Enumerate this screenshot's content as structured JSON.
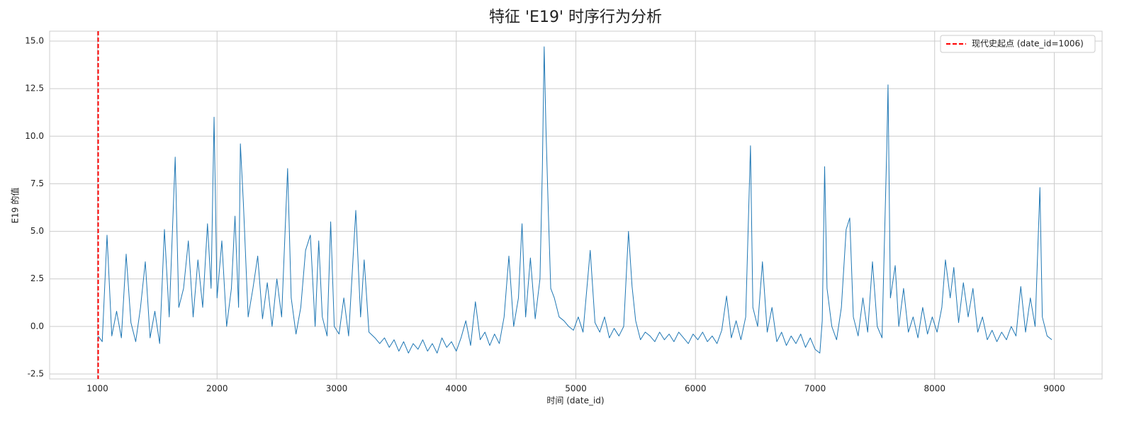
{
  "chart_data": {
    "type": "line",
    "title": "特征 'E19' 时序行为分析",
    "xlabel": "时间 (date_id)",
    "ylabel": "E19 的值",
    "xlim": [
      600,
      9400
    ],
    "ylim": [
      -2.76,
      15.52
    ],
    "xticks": [
      1000,
      2000,
      3000,
      4000,
      5000,
      6000,
      7000,
      8000,
      9000
    ],
    "yticks": [
      {
        "value": -2.5,
        "label": "-2.5"
      },
      {
        "value": 0,
        "label": "0.0"
      },
      2.5,
      {
        "value": 5,
        "label": "5.0"
      },
      7.5,
      {
        "value": 10,
        "label": "10.0"
      },
      12.5,
      {
        "value": 15,
        "label": "15.0"
      }
    ],
    "grid": true,
    "legend": "upper right",
    "vline": {
      "x": 1006,
      "color": "#ff0000",
      "label": "现代史起点 (date_id=1006)"
    },
    "x": [
      1006,
      1040,
      1080,
      1120,
      1160,
      1200,
      1240,
      1280,
      1320,
      1360,
      1400,
      1440,
      1480,
      1520,
      1560,
      1600,
      1650,
      1680,
      1720,
      1760,
      1800,
      1840,
      1880,
      1920,
      1950,
      1975,
      2000,
      2040,
      2080,
      2120,
      2150,
      2180,
      2195,
      2220,
      2260,
      2300,
      2340,
      2380,
      2420,
      2460,
      2500,
      2540,
      2590,
      2620,
      2660,
      2700,
      2740,
      2780,
      2820,
      2850,
      2880,
      2920,
      2950,
      2980,
      3020,
      3060,
      3100,
      3160,
      3200,
      3230,
      3270,
      3320,
      3360,
      3400,
      3440,
      3480,
      3520,
      3560,
      3600,
      3640,
      3680,
      3720,
      3760,
      3800,
      3840,
      3880,
      3920,
      3960,
      4000,
      4040,
      4080,
      4120,
      4160,
      4200,
      4240,
      4280,
      4320,
      4360,
      4400,
      4440,
      4480,
      4520,
      4550,
      4580,
      4620,
      4660,
      4700,
      4720,
      4735,
      4750,
      4770,
      4790,
      4820,
      4860,
      4900,
      4940,
      4980,
      5020,
      5060,
      5120,
      5160,
      5200,
      5240,
      5280,
      5320,
      5360,
      5400,
      5440,
      5470,
      5500,
      5540,
      5580,
      5620,
      5660,
      5700,
      5740,
      5780,
      5820,
      5860,
      5900,
      5940,
      5980,
      6020,
      6060,
      6100,
      6140,
      6180,
      6220,
      6260,
      6300,
      6340,
      6380,
      6420,
      6460,
      6480,
      6520,
      6560,
      6600,
      6640,
      6680,
      6720,
      6760,
      6800,
      6840,
      6880,
      6920,
      6960,
      7000,
      7040,
      7060,
      7080,
      7100,
      7140,
      7180,
      7220,
      7260,
      7290,
      7320,
      7360,
      7400,
      7440,
      7480,
      7520,
      7560,
      7600,
      7610,
      7630,
      7670,
      7700,
      7740,
      7780,
      7820,
      7860,
      7900,
      7940,
      7980,
      8020,
      8060,
      8090,
      8130,
      8160,
      8200,
      8240,
      8280,
      8320,
      8360,
      8400,
      8440,
      8480,
      8520,
      8560,
      8600,
      8640,
      8680,
      8720,
      8760,
      8800,
      8840,
      8880,
      8900,
      8940,
      8980
    ],
    "series": [
      {
        "name": "E19",
        "color": "#1f77b4",
        "values": [
          -0.5,
          -0.8,
          4.8,
          -0.5,
          0.8,
          -0.6,
          3.8,
          0.2,
          -0.8,
          1.0,
          3.4,
          -0.6,
          0.8,
          -0.9,
          5.1,
          0.5,
          8.9,
          1.0,
          2.0,
          4.5,
          0.5,
          3.5,
          1.0,
          5.4,
          2.0,
          11.0,
          1.5,
          4.5,
          0.0,
          2.0,
          5.8,
          1.0,
          9.6,
          6.5,
          0.5,
          2.0,
          3.7,
          0.4,
          2.3,
          0.0,
          2.5,
          0.5,
          8.3,
          1.5,
          -0.4,
          1.0,
          4.0,
          4.8,
          0.0,
          4.5,
          0.5,
          -0.5,
          5.5,
          0.0,
          -0.4,
          1.5,
          -0.5,
          6.1,
          0.5,
          3.5,
          -0.3,
          -0.6,
          -0.9,
          -0.6,
          -1.1,
          -0.7,
          -1.3,
          -0.8,
          -1.4,
          -0.9,
          -1.2,
          -0.7,
          -1.3,
          -0.9,
          -1.4,
          -0.6,
          -1.1,
          -0.8,
          -1.3,
          -0.6,
          0.3,
          -1.0,
          1.3,
          -0.7,
          -0.3,
          -1.0,
          -0.4,
          -0.9,
          0.5,
          3.7,
          0.0,
          1.5,
          5.4,
          0.5,
          3.6,
          0.4,
          2.5,
          8.3,
          14.7,
          10.4,
          6.0,
          2.0,
          1.5,
          0.5,
          0.3,
          0.0,
          -0.2,
          0.5,
          -0.3,
          4.0,
          0.2,
          -0.3,
          0.5,
          -0.6,
          -0.1,
          -0.5,
          0.0,
          5.0,
          2.1,
          0.3,
          -0.7,
          -0.3,
          -0.5,
          -0.8,
          -0.3,
          -0.7,
          -0.4,
          -0.8,
          -0.3,
          -0.6,
          -0.9,
          -0.4,
          -0.7,
          -0.3,
          -0.8,
          -0.5,
          -0.9,
          -0.2,
          1.6,
          -0.6,
          0.3,
          -0.7,
          0.5,
          9.5,
          1.0,
          0.0,
          3.4,
          -0.3,
          1.0,
          -0.8,
          -0.3,
          -1.0,
          -0.5,
          -0.9,
          -0.4,
          -1.1,
          -0.6,
          -1.2,
          -1.4,
          0.3,
          8.4,
          2.0,
          0.0,
          -0.7,
          1.0,
          5.1,
          5.7,
          0.5,
          -0.5,
          1.5,
          -0.3,
          3.4,
          0.0,
          -0.6,
          9.5,
          12.7,
          1.5,
          3.2,
          0.0,
          2.0,
          -0.3,
          0.5,
          -0.6,
          1.0,
          -0.4,
          0.5,
          -0.3,
          1.0,
          3.5,
          1.5,
          3.1,
          0.2,
          2.3,
          0.5,
          2.0,
          -0.3,
          0.5,
          -0.7,
          -0.2,
          -0.8,
          -0.3,
          -0.7,
          0.0,
          -0.5,
          2.1,
          -0.3,
          1.5,
          0.0,
          7.3,
          0.5,
          -0.5,
          -0.7
        ]
      }
    ]
  }
}
